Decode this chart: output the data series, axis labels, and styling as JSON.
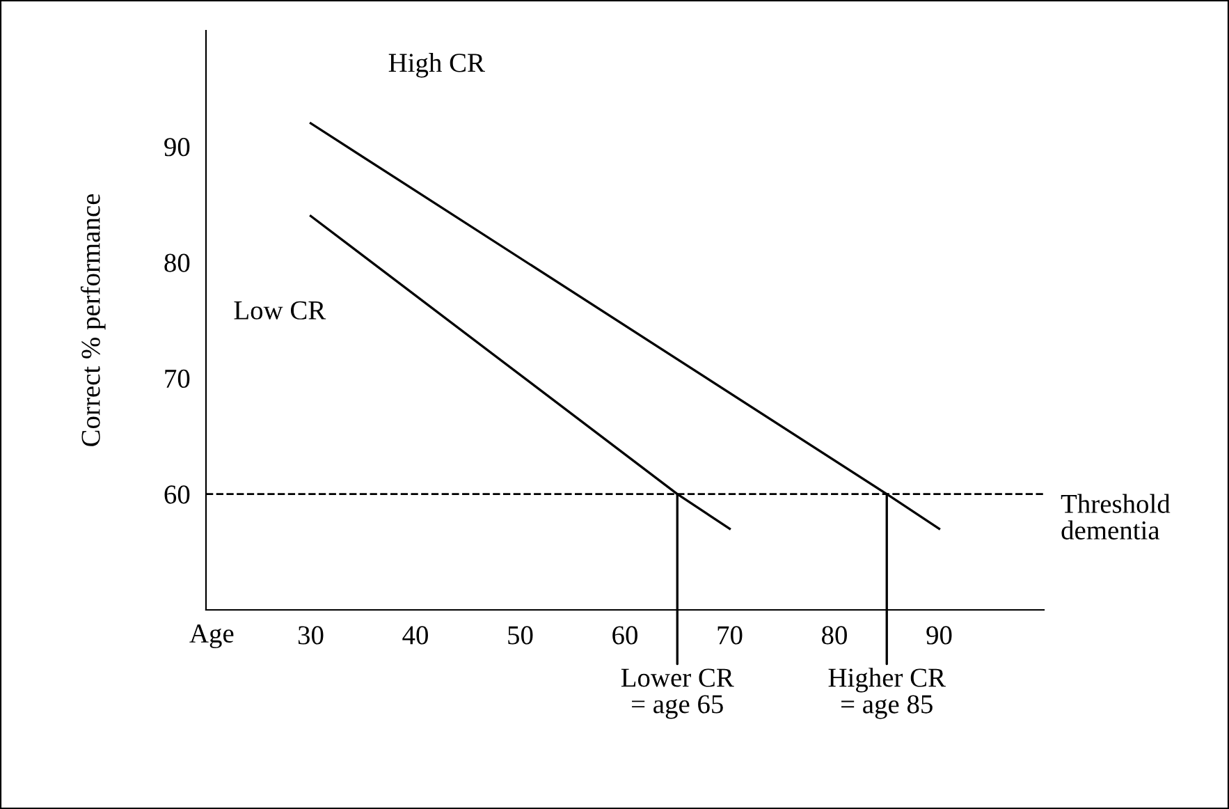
{
  "chart_data": {
    "type": "line",
    "xlabel": "Age",
    "ylabel": "Correct % performance",
    "xlim": [
      20,
      100
    ],
    "ylim": [
      50,
      100
    ],
    "xticks": [
      30,
      40,
      50,
      60,
      70,
      80,
      90
    ],
    "yticks": [
      60,
      70,
      80,
      90
    ],
    "series": [
      {
        "name": "High CR",
        "color": "#000000",
        "x": [
          30,
          85,
          90
        ],
        "values": [
          92,
          60,
          57
        ]
      },
      {
        "name": "Low CR",
        "color": "#000000",
        "x": [
          30,
          65,
          70
        ],
        "values": [
          84,
          60,
          57
        ]
      }
    ],
    "ref_lines": [
      {
        "axis": "y",
        "value": 60,
        "label": "Threshold\ndementia",
        "color": "#000000",
        "line_style": "dashed"
      }
    ],
    "annotations": [
      {
        "text": "Lower CR\n= age 65",
        "x": 65,
        "y": 60
      },
      {
        "text": "Higher CR\n= age 85",
        "x": 85,
        "y": 60
      }
    ],
    "grid": false,
    "legend": false,
    "marker": "none",
    "line_style": "solid"
  }
}
